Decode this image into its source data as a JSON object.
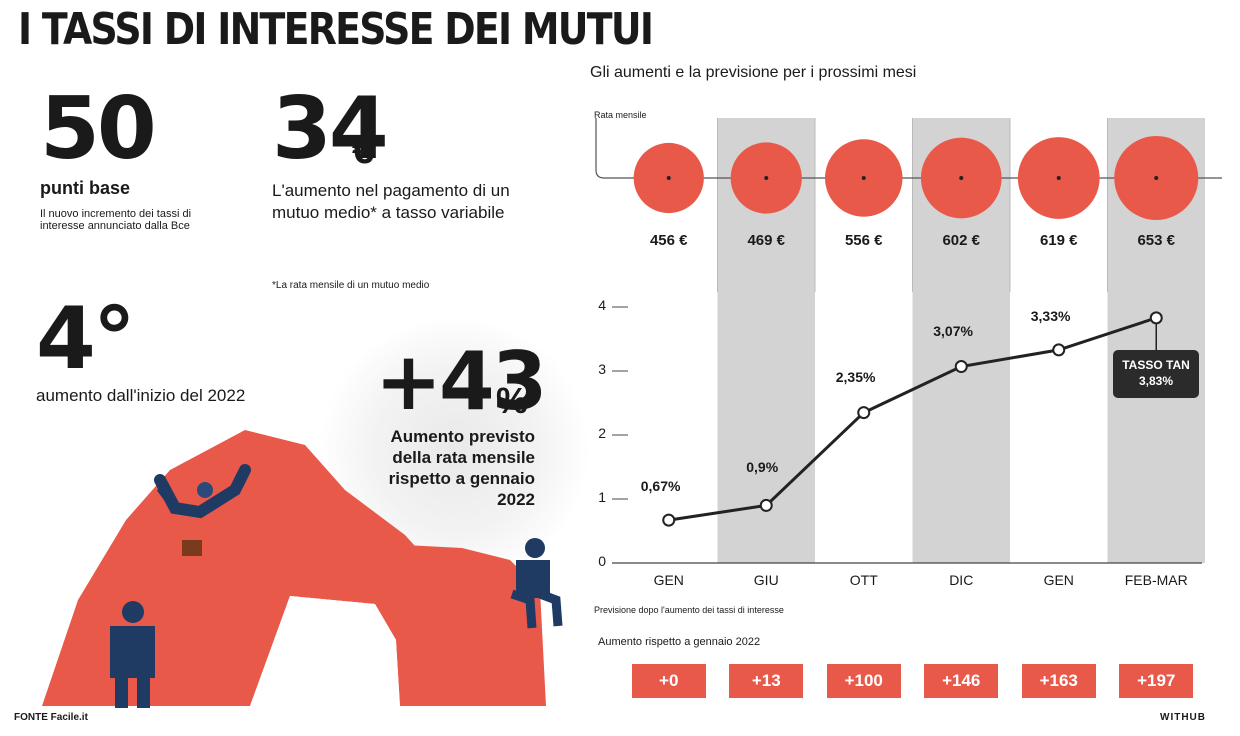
{
  "header": {
    "title": "I TASSI DI INTERESSE DEI MUTUI"
  },
  "stats": {
    "s50": {
      "value": "50",
      "label": "punti base",
      "desc": "Il nuovo incremento dei tassi di interesse annunciato dalla Bce"
    },
    "s34": {
      "value": "34",
      "unit": "€",
      "label": "L'aumento nel pagamento di un mutuo medio* a tasso variabile",
      "note": "*La rata mensile di un mutuo medio"
    },
    "s4": {
      "value": "4°",
      "label": "aumento dall'inizio del 2022"
    },
    "s43": {
      "value": "+43",
      "unit": "%",
      "label": "Aumento previsto della rata mensile rispetto a gennaio 2022"
    }
  },
  "footer": {
    "source": "FONTE Facile.it",
    "brand": "WITHUB"
  },
  "chart_labels": {
    "title": "Gli aumenti e la previsione per i prossimi mesi",
    "rata_label": "Rata mensile",
    "previsione_label": "Previsione dopo l'aumento dei tassi di interesse",
    "aumento_label": "Aumento rispetto a gennaio 2022",
    "tan_label": "TASSO TAN",
    "tan_value": "3,83%"
  },
  "colors": {
    "accent": "#e9594a",
    "band": "#d3d3d3",
    "dark": "#2b2b2b"
  },
  "chart_data": {
    "type": "line",
    "categories": [
      "GEN",
      "GIU",
      "OTT",
      "DIC",
      "GEN",
      "FEB-MAR"
    ],
    "series": [
      {
        "values": [
          0.67,
          0.9,
          2.35,
          3.07,
          3.33,
          3.83
        ]
      }
    ],
    "value_labels": [
      "0,67%",
      "0,9%",
      "2,35%",
      "3,07%",
      "3,33%",
      ""
    ],
    "ylim": [
      0,
      4
    ],
    "yticks": [
      0,
      1,
      2,
      3,
      4
    ],
    "monthly_payment": [
      456,
      469,
      556,
      602,
      619,
      653
    ],
    "monthly_payment_labels": [
      "456 €",
      "469 €",
      "556 €",
      "602 €",
      "619 €",
      "653 €"
    ],
    "increase_vs_jan_2022": [
      "+0",
      "+13",
      "+100",
      "+146",
      "+163",
      "+197"
    ],
    "shaded_columns": [
      1,
      3,
      5
    ]
  }
}
